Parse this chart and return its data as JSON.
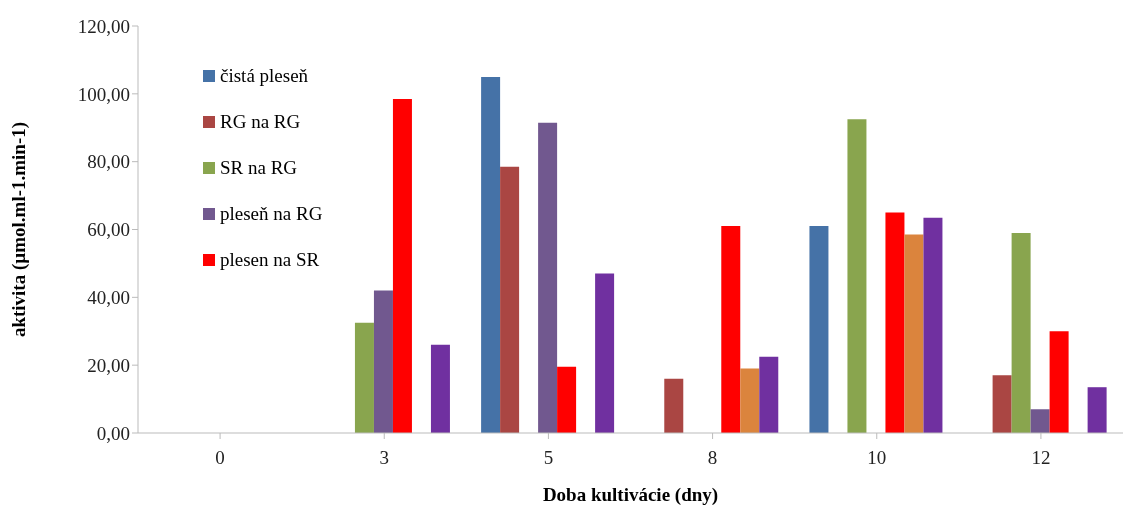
{
  "chart_data": {
    "type": "bar",
    "xlabel": "Doba kultivácie (dny)",
    "ylabel": "aktivita (µmol.ml-1.min-1)",
    "categories": [
      "0",
      "3",
      "5",
      "8",
      "10",
      "12"
    ],
    "series": [
      {
        "name": "čistá pleseň",
        "color": "#4572a7",
        "values": [
          null,
          null,
          105,
          null,
          61,
          null
        ]
      },
      {
        "name": "RG na RG",
        "color": "#aa4643",
        "values": [
          null,
          null,
          78.5,
          16,
          null,
          17
        ]
      },
      {
        "name": "SR na RG",
        "color": "#89a54e",
        "values": [
          null,
          32.5,
          null,
          null,
          92.5,
          59
        ]
      },
      {
        "name": "pleseň na RG",
        "color": "#71588f",
        "values": [
          null,
          42,
          91.5,
          null,
          null,
          7
        ]
      },
      {
        "name": "plesen na SR",
        "color": "#ff0000",
        "values": [
          null,
          98.5,
          19.5,
          61,
          65,
          30
        ]
      },
      {
        "color": "#db843d",
        "values": [
          null,
          null,
          null,
          19,
          58.5,
          null
        ]
      },
      {
        "color": "#7030a0",
        "values": [
          null,
          26,
          47,
          22.5,
          63.5,
          13.5
        ]
      }
    ],
    "ylim": [
      0,
      120
    ],
    "yticks": [
      {
        "value": 0,
        "label": "0,00"
      },
      {
        "value": 20,
        "label": "20,00"
      },
      {
        "value": 40,
        "label": "40,00"
      },
      {
        "value": 60,
        "label": "60,00"
      },
      {
        "value": 80,
        "label": "80,00"
      },
      {
        "value": 100,
        "label": "100,00"
      },
      {
        "value": 120,
        "label": "120,00"
      }
    ],
    "grid": false,
    "legend": "top left"
  }
}
